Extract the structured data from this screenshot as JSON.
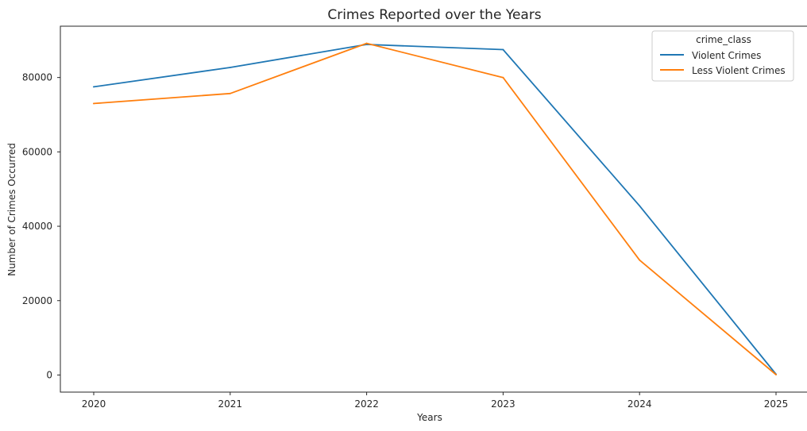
{
  "chart_data": {
    "type": "line",
    "title": "Crimes Reported over the Years",
    "xlabel": "Years",
    "ylabel": "Number of Crimes Occurred",
    "x": [
      "2020",
      "2021",
      "2022",
      "2023",
      "2024",
      "2025"
    ],
    "ylim": [
      -4600,
      93800
    ],
    "yticks": [
      0,
      20000,
      40000,
      60000,
      80000
    ],
    "ytick_labels": [
      "0",
      "20000",
      "40000",
      "60000",
      "80000"
    ],
    "grid": false,
    "legend": {
      "title": "crime_class",
      "placement": "top-right"
    },
    "series": [
      {
        "name": "Violent Crimes",
        "color": "#1f77b4",
        "values": [
          77500,
          82700,
          88900,
          87500,
          45500,
          200
        ]
      },
      {
        "name": "Less Violent Crimes",
        "color": "#ff7f0e",
        "values": [
          73000,
          75700,
          89200,
          80000,
          30900,
          100
        ]
      }
    ]
  }
}
